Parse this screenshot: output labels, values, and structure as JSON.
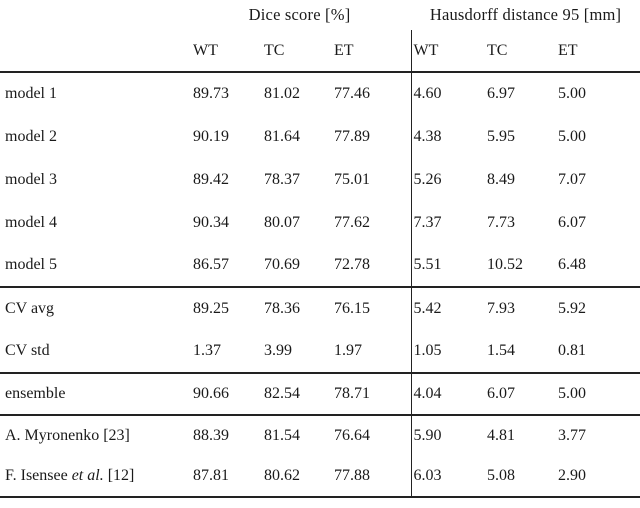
{
  "table": {
    "column_groups": [
      {
        "title": "Dice score [%]"
      },
      {
        "title": "Hausdorff distance 95 [mm]"
      }
    ],
    "sub_headers": [
      "WT",
      "TC",
      "ET",
      "WT",
      "TC",
      "ET"
    ],
    "groups": [
      {
        "rows": [
          {
            "label": "model 1",
            "values": [
              "89.73",
              "81.02",
              "77.46",
              "4.60",
              "6.97",
              "5.00"
            ]
          },
          {
            "label": "model 2",
            "values": [
              "90.19",
              "81.64",
              "77.89",
              "4.38",
              "5.95",
              "5.00"
            ]
          },
          {
            "label": "model 3",
            "values": [
              "89.42",
              "78.37",
              "75.01",
              "5.26",
              "8.49",
              "7.07"
            ]
          },
          {
            "label": "model 4",
            "values": [
              "90.34",
              "80.07",
              "77.62",
              "7.37",
              "7.73",
              "6.07"
            ]
          },
          {
            "label": "model 5",
            "values": [
              "86.57",
              "70.69",
              "72.78",
              "5.51",
              "10.52",
              "6.48"
            ]
          }
        ]
      },
      {
        "rows": [
          {
            "label": "CV avg",
            "values": [
              "89.25",
              "78.36",
              "76.15",
              "5.42",
              "7.93",
              "5.92"
            ]
          },
          {
            "label": "CV std",
            "values": [
              "1.37",
              "3.99",
              "1.97",
              "1.05",
              "1.54",
              "0.81"
            ]
          }
        ]
      },
      {
        "rows": [
          {
            "label": "ensemble",
            "values": [
              "90.66",
              "82.54",
              "78.71",
              "4.04",
              "6.07",
              "5.00"
            ]
          }
        ]
      },
      {
        "rows": [
          {
            "label": "A. Myronenko [23]",
            "values": [
              "88.39",
              "81.54",
              "76.64",
              "5.90",
              "4.81",
              "3.77"
            ]
          },
          {
            "label_parts": [
              {
                "text": "F. Isensee "
              },
              {
                "text": "et al.",
                "italic": true
              },
              {
                "text": " [12]"
              }
            ],
            "values": [
              "87.81",
              "80.62",
              "77.88",
              "6.03",
              "5.08",
              "2.90"
            ]
          }
        ]
      }
    ]
  },
  "colors": {
    "background": "#ffffff",
    "text": "#1a1a1a",
    "rule": "#222222"
  }
}
